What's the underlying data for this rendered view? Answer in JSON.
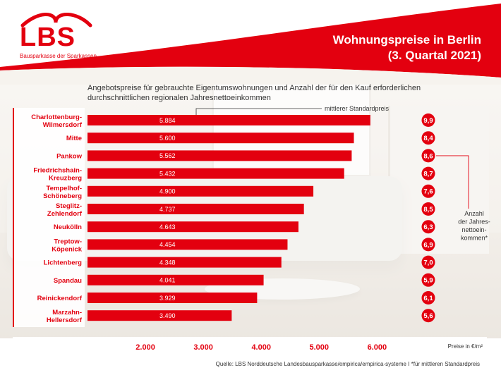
{
  "logo": {
    "word": "LBS",
    "tagline": "Bausparkasse der Sparkassen"
  },
  "title_line1": "Wohnungspreise in Berlin",
  "title_line2": "(3. Quartal 2021)",
  "subtitle": "Angebotspreise für gebrauchte Eigentumswohnungen und Anzahl der für den Kauf erforderlichen durchschnittlichen regionalen Jahresnettoeinkommen",
  "annotations": {
    "price_note": "mittlerer Standardpreis",
    "ratio_note_lines": [
      "Anzahl",
      "der Jahres-",
      "nettoein-",
      "kommen*"
    ],
    "unit": "Preise in €/m²"
  },
  "source": "Quelle: LBS Norddeutsche Landesbausparkasse/empirica/empirica-systeme   I   *für mittleren Standardpreis",
  "colors": {
    "brand_red": "#e3000f",
    "text_dark": "#333333"
  },
  "chart_data": {
    "type": "bar",
    "orientation": "horizontal",
    "categories": [
      [
        "Charlottenburg-",
        "Wilmersdorf"
      ],
      [
        "Mitte"
      ],
      [
        "Pankow"
      ],
      [
        "Friedrichshain-",
        "Kreuzberg"
      ],
      [
        "Tempelhof-",
        "Schöneberg"
      ],
      [
        "Steglitz-",
        "Zehlendorf"
      ],
      [
        "Neukölln"
      ],
      [
        "Treptow-",
        "Köpenick"
      ],
      [
        "Lichtenberg"
      ],
      [
        "Spandau"
      ],
      [
        "Reinickendorf"
      ],
      [
        "Marzahn-",
        "Hellersdorf"
      ]
    ],
    "series": [
      {
        "values": [
          5884,
          5600,
          5562,
          5432,
          4900,
          4737,
          4643,
          4454,
          4348,
          4041,
          3929,
          3490
        ],
        "labels": [
          "5.884",
          "5.600",
          "5.562",
          "5.432",
          "4.900",
          "4.737",
          "4.643",
          "4.454",
          "4.348",
          "4.041",
          "3.929",
          "3.490"
        ]
      },
      {
        "values": [
          9.9,
          8.4,
          8.6,
          8.7,
          7.6,
          8.5,
          6.3,
          6.9,
          7.0,
          5.9,
          6.1,
          5.6
        ],
        "labels": [
          "9,9",
          "8,4",
          "8,6",
          "8,7",
          "7,6",
          "8,5",
          "6,3",
          "6,9",
          "7,0",
          "5,9",
          "6,1",
          "5,6"
        ]
      }
    ],
    "x_axis": {
      "range": [
        1000,
        6800
      ],
      "ticks": [
        2000,
        3000,
        4000,
        5000,
        6000
      ],
      "tick_labels": [
        "2.000",
        "3.000",
        "4.000",
        "5.000",
        "6.000"
      ]
    },
    "grid": false
  }
}
